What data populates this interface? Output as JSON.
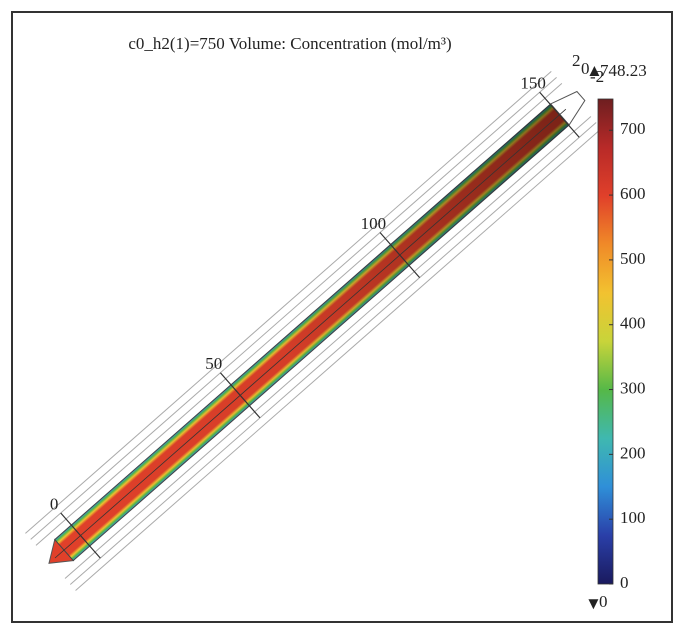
{
  "chart_data": {
    "type": "volume-rod",
    "title": "c0_h2(1)=750  Volume: Concentration (mol/m³)",
    "xlim": [
      -8,
      152
    ],
    "xticks": [
      0,
      50,
      100,
      150
    ],
    "zticks": [
      2,
      0,
      -2
    ],
    "clim": [
      0,
      748.23
    ],
    "cticks": [
      0,
      100,
      200,
      300,
      400,
      500,
      600,
      700
    ],
    "cmax_label": 748.23,
    "cmin_label": 0,
    "colormap": [
      "#1a1a5e",
      "#2a3fa8",
      "#2f8fd8",
      "#3fb8b0",
      "#55b848",
      "#c8d43a",
      "#f2c230",
      "#f08a28",
      "#e0402a",
      "#b82a28",
      "#6e1e20"
    ]
  }
}
